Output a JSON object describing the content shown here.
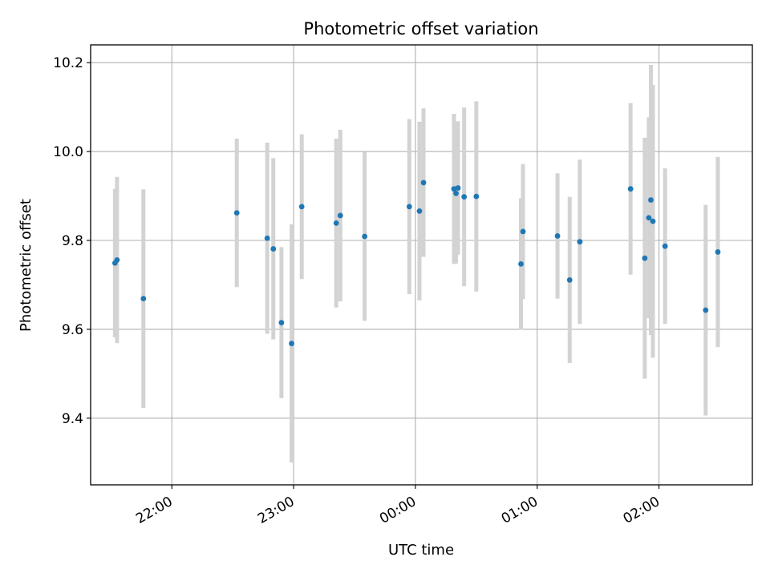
{
  "chart_data": {
    "type": "scatter",
    "title": "Photometric offset variation",
    "xlabel": "UTC time",
    "ylabel": "Photometric offset",
    "x_unit": "UTC time (HH:MM)",
    "xlim": [
      "21:20",
      "02:46"
    ],
    "ylim": [
      9.25,
      10.24
    ],
    "x_ticks": [
      "22:00",
      "23:00",
      "00:00",
      "01:00",
      "02:00"
    ],
    "y_ticks": [
      9.4,
      9.6,
      9.8,
      10.0,
      10.2
    ],
    "y_tick_labels": [
      "9.4",
      "9.6",
      "9.8",
      "10.0",
      "10.2"
    ],
    "grid": true,
    "colors": {
      "points": "#1f77b4",
      "error_bars": "#d3d3d3",
      "grid": "#b0b0b0"
    },
    "series": [
      {
        "points": [
          {
            "t": "21:32",
            "y": 9.749,
            "err": 0.167
          },
          {
            "t": "21:33",
            "y": 9.756,
            "err": 0.187
          },
          {
            "t": "21:46",
            "y": 9.669,
            "err": 0.246
          },
          {
            "t": "22:32",
            "y": 9.862,
            "err": 0.167
          },
          {
            "t": "22:47",
            "y": 9.805,
            "err": 0.215
          },
          {
            "t": "22:50",
            "y": 9.781,
            "err": 0.204
          },
          {
            "t": "22:54",
            "y": 9.615,
            "err": 0.17
          },
          {
            "t": "22:59",
            "y": 9.568,
            "err": 0.268
          },
          {
            "t": "23:04",
            "y": 9.876,
            "err": 0.163
          },
          {
            "t": "23:21",
            "y": 9.839,
            "err": 0.19
          },
          {
            "t": "23:23",
            "y": 9.856,
            "err": 0.193
          },
          {
            "t": "23:35",
            "y": 9.809,
            "err": 0.19
          },
          {
            "t": "23:57",
            "y": 9.876,
            "err": 0.197
          },
          {
            "t": "00:02",
            "y": 9.866,
            "err": 0.201
          },
          {
            "t": "00:04",
            "y": 9.93,
            "err": 0.167
          },
          {
            "t": "00:19",
            "y": 9.916,
            "err": 0.169
          },
          {
            "t": "00:20",
            "y": 9.906,
            "err": 0.158
          },
          {
            "t": "00:21",
            "y": 9.918,
            "err": 0.15
          },
          {
            "t": "00:24",
            "y": 9.898,
            "err": 0.201
          },
          {
            "t": "00:30",
            "y": 9.899,
            "err": 0.214
          },
          {
            "t": "00:52",
            "y": 9.747,
            "err": 0.148
          },
          {
            "t": "00:53",
            "y": 9.82,
            "err": 0.152
          },
          {
            "t": "01:10",
            "y": 9.81,
            "err": 0.141
          },
          {
            "t": "01:16",
            "y": 9.711,
            "err": 0.187
          },
          {
            "t": "01:21",
            "y": 9.797,
            "err": 0.185
          },
          {
            "t": "01:46",
            "y": 9.916,
            "err": 0.193
          },
          {
            "t": "01:53",
            "y": 9.76,
            "err": 0.271
          },
          {
            "t": "01:55",
            "y": 9.851,
            "err": 0.226
          },
          {
            "t": "01:56",
            "y": 9.891,
            "err": 0.304
          },
          {
            "t": "01:57",
            "y": 9.843,
            "err": 0.307
          },
          {
            "t": "02:03",
            "y": 9.787,
            "err": 0.175
          },
          {
            "t": "02:23",
            "y": 9.643,
            "err": 0.237
          },
          {
            "t": "02:29",
            "y": 9.774,
            "err": 0.214
          }
        ]
      }
    ]
  }
}
